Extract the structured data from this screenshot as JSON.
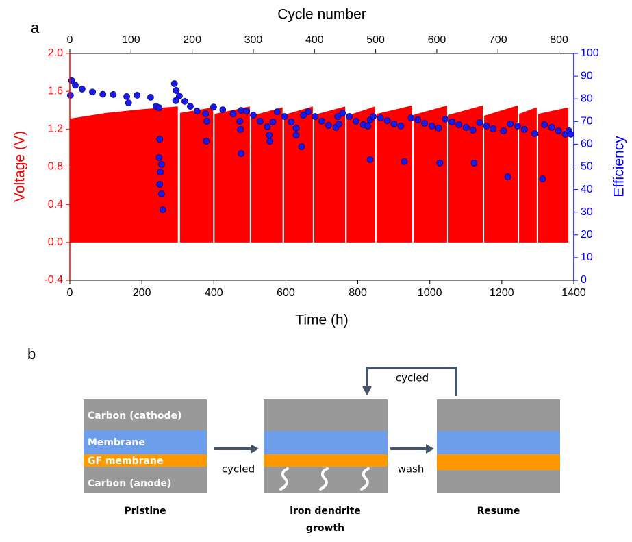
{
  "chart_data": {
    "type": "combo",
    "panel_label": "a",
    "xlabel": "Time (h)",
    "x2label": "Cycle number",
    "ylabel": "Voltage (V)",
    "y2label": "Efficiency",
    "xlim": [
      0,
      1400
    ],
    "xticks": [
      0,
      200,
      400,
      600,
      800,
      1000,
      1200,
      1400
    ],
    "x2lim": [
      0,
      824
    ],
    "x2ticks": [
      0,
      100,
      200,
      300,
      400,
      500,
      600,
      700,
      800
    ],
    "ylim": [
      -0.4,
      2.0
    ],
    "yticks": [
      -0.4,
      {
        "value": 0,
        "label": "0.0"
      },
      0.4,
      0.8,
      1.2,
      1.6,
      {
        "value": 2,
        "label": "2.0"
      }
    ],
    "y2lim": [
      0,
      100
    ],
    "y2ticks": [
      0,
      10,
      20,
      30,
      40,
      50,
      60,
      70,
      80,
      90,
      100
    ],
    "ycolor": "#ff0000",
    "y2color": "#0000ff",
    "series": [
      {
        "type": "area",
        "color": "#ff0000",
        "x": [
          0,
          100,
          200,
          300,
          304,
          306,
          398,
          400,
          402,
          500,
          502,
          504,
          591,
          593,
          595,
          675,
          677,
          679,
          765,
          767,
          769,
          848,
          850,
          852,
          951,
          953,
          955,
          1048,
          1050,
          1052,
          1147,
          1149,
          1151,
          1244,
          1246,
          1248,
          1297,
          1299,
          1301,
          1385
        ],
        "values": [
          1.31,
          1.37,
          1.41,
          1.44,
          null,
          1.37,
          1.43,
          null,
          1.36,
          1.44,
          null,
          1.34,
          1.43,
          null,
          1.35,
          1.44,
          null,
          1.35,
          1.44,
          null,
          1.34,
          1.44,
          null,
          1.36,
          1.45,
          null,
          1.35,
          1.45,
          null,
          1.35,
          1.45,
          null,
          1.34,
          1.45,
          null,
          1.36,
          1.43,
          null,
          1.36,
          1.43
        ]
      },
      {
        "type": "scatter",
        "axis": "y2",
        "xaxis": "x2",
        "color": "#1a1ae6",
        "x": [
          1,
          3,
          9,
          20,
          37,
          54,
          71,
          93,
          96,
          110,
          132,
          141,
          146,
          147,
          146,
          150,
          148,
          147,
          150,
          152,
          171,
          174,
          173,
          179,
          188,
          197,
          208,
          222,
          224,
          223,
          235,
          250,
          267,
          278,
          280,
          279,
          280,
          289,
          300,
          311,
          323,
          326,
          327,
          332,
          339,
          351,
          362,
          370,
          370,
          379,
          382,
          390,
          401,
          412,
          423,
          435,
          440,
          438,
          446,
          457,
          468,
          480,
          487,
          491,
          496,
          491,
          508,
          519,
          530,
          541,
          547,
          558,
          569,
          580,
          592,
          603,
          605,
          614,
          625,
          636,
          648,
          659,
          661,
          670,
          681,
          692,
          709,
          716,
          720,
          732,
          743,
          760,
          773,
          776,
          788,
          799,
          810,
          816,
          819
        ],
        "values": [
          81.6,
          88,
          86,
          84.3,
          83,
          82,
          81.9,
          81,
          78.2,
          81.6,
          80.7,
          76.7,
          76.1,
          62.2,
          54.1,
          51.1,
          47.7,
          42.3,
          38.1,
          31.1,
          86.7,
          83.7,
          79.2,
          81.3,
          78.9,
          76.7,
          74.6,
          73.4,
          70.1,
          61.3,
          76.4,
          75.2,
          73.4,
          70.1,
          74.9,
          66.5,
          55.9,
          74.6,
          72.8,
          70.1,
          67.7,
          64,
          61.3,
          69.8,
          74.3,
          72.2,
          69.8,
          67.1,
          64,
          58.9,
          72.8,
          74.3,
          72.2,
          70.1,
          68.3,
          67.4,
          68.9,
          72.2,
          73.7,
          72.2,
          70.1,
          68.6,
          68,
          70.7,
          72.2,
          53.2,
          71.6,
          70.4,
          68.9,
          68,
          52.3,
          71.6,
          70.7,
          69.2,
          68,
          67.1,
          51.7,
          71,
          69.8,
          68.6,
          67.4,
          66.2,
          51.7,
          69.5,
          68,
          66.8,
          65.9,
          45.6,
          68.9,
          68,
          66.5,
          64.7,
          44.7,
          68.6,
          67.4,
          65.9,
          64.4,
          65.9,
          64.4
        ]
      }
    ]
  },
  "diagram": {
    "panel_label": "b",
    "stages": [
      {
        "caption": "Pristine",
        "layers": [
          "Carbon (cathode)",
          "Membrane",
          "GF membrane",
          "Carbon (anode)"
        ]
      },
      {
        "caption_lines": [
          "iron dendrite",
          "growth"
        ]
      },
      {
        "caption": "Resume"
      }
    ],
    "arrows": [
      {
        "label": "cycled"
      },
      {
        "label": "wash"
      },
      {
        "label": "cycled"
      }
    ]
  }
}
